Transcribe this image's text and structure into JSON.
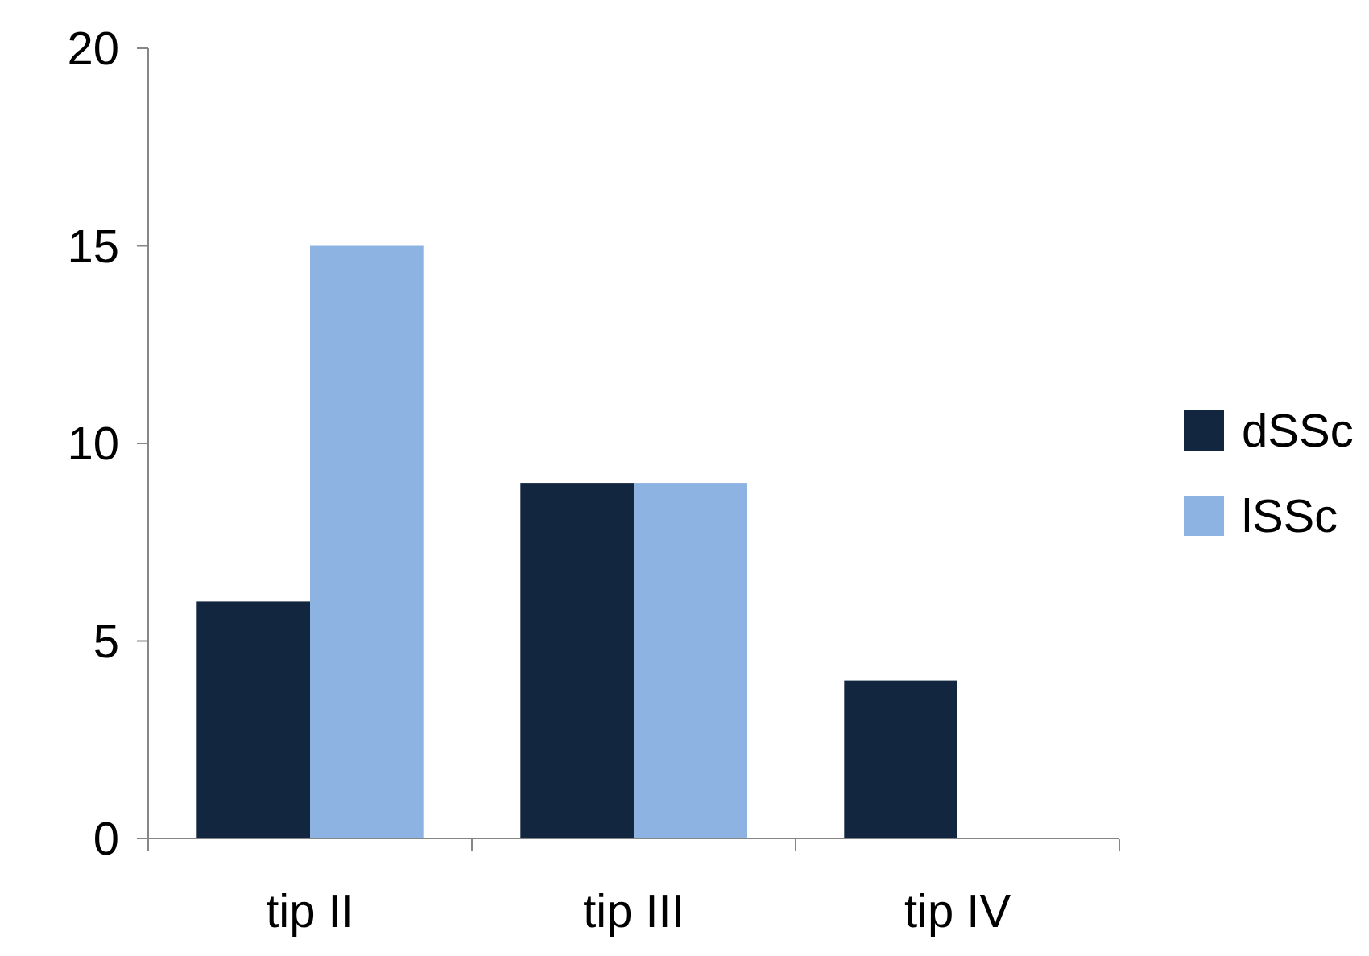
{
  "chart_data": {
    "type": "bar",
    "categories": [
      "tip II",
      "tip III",
      "tip IV"
    ],
    "series": [
      {
        "name": "dSSc",
        "color": "#13263f",
        "values": [
          6,
          9,
          4
        ]
      },
      {
        "name": "lSSc",
        "color": "#8db3e2",
        "values": [
          15,
          9,
          0
        ]
      }
    ],
    "ylim": [
      0,
      20
    ],
    "yticks": [
      0,
      5,
      10,
      15,
      20
    ],
    "grid": false,
    "legend": "right"
  }
}
